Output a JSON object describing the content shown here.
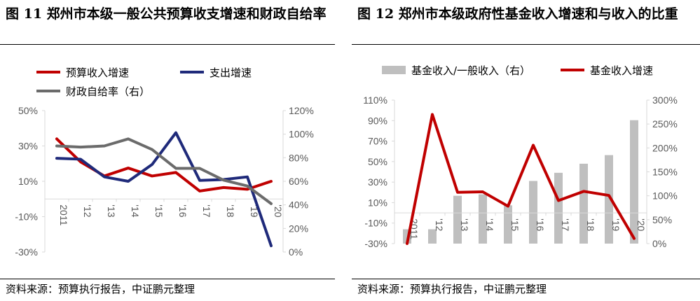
{
  "chart_data": [
    {
      "type": "line",
      "title": "图 11 郑州市本级一般公共预算收支增速和财政自给率",
      "source": "资料来源：预算执行报告，中证鹏元整理",
      "categories": [
        "2011",
        "'12",
        "'13",
        "'14",
        "'15",
        "'16",
        "'17",
        "'18",
        "'19",
        "'20"
      ],
      "y_left": {
        "range": [
          -30,
          50
        ],
        "ticks": [
          "50%",
          "30%",
          "10%",
          "-10%",
          "-30%"
        ],
        "tick_values": [
          50,
          30,
          10,
          -10,
          -30
        ]
      },
      "y_right": {
        "range": [
          0,
          120
        ],
        "ticks": [
          "120%",
          "100%",
          "80%",
          "60%",
          "40%",
          "20%",
          "0%"
        ],
        "tick_values": [
          120,
          100,
          80,
          60,
          40,
          20,
          0
        ]
      },
      "legend_placement": "top",
      "series": [
        {
          "name": "预算收入增速",
          "axis": "left",
          "color": "#C00000",
          "values": [
            34,
            21,
            13,
            17.5,
            13,
            15,
            4.5,
            6.5,
            5.5,
            10
          ]
        },
        {
          "name": "支出增速",
          "axis": "left",
          "color": "#1F2A7A",
          "values": [
            23,
            22.5,
            12.5,
            10,
            19.5,
            37.5,
            10.5,
            11,
            12.5,
            -26.5
          ]
        },
        {
          "name": "财政自给率（右）",
          "axis": "right",
          "color": "#6B6B6B",
          "values": [
            90,
            89,
            90,
            96,
            87,
            71,
            71,
            61,
            56,
            41
          ]
        }
      ]
    },
    {
      "type": "bar+line",
      "title": "图 12 郑州市本级政府性基金收入增速和与收入的比重",
      "source": "资料来源：预算执行报告，中证鹏元整理",
      "categories": [
        "2011",
        "'12",
        "'13",
        "'14",
        "'15",
        "'16",
        "'17",
        "'18",
        "'19",
        "'20"
      ],
      "y_left": {
        "range": [
          -30,
          110
        ],
        "ticks": [
          "110%",
          "90%",
          "70%",
          "50%",
          "30%",
          "10%",
          "-10%",
          "-30%"
        ],
        "tick_values": [
          110,
          90,
          70,
          50,
          30,
          10,
          -10,
          -30
        ]
      },
      "y_right": {
        "range": [
          0,
          300
        ],
        "ticks": [
          "300%",
          "250%",
          "200%",
          "150%",
          "100%",
          "50%",
          "0%"
        ],
        "tick_values": [
          300,
          250,
          200,
          150,
          100,
          50,
          0
        ]
      },
      "legend_placement": "top",
      "series": [
        {
          "name": "基金收入/一般收入（右）",
          "kind": "bar",
          "axis": "right",
          "color": "#BFBFBF",
          "values": [
            30,
            30,
            100,
            103,
            80,
            131,
            148,
            167,
            185,
            258
          ]
        },
        {
          "name": "基金收入增速",
          "kind": "line",
          "axis": "left",
          "color": "#C00000",
          "values": [
            -30,
            96,
            20,
            20.5,
            6.5,
            66,
            12,
            21,
            17,
            -25
          ]
        }
      ]
    }
  ]
}
